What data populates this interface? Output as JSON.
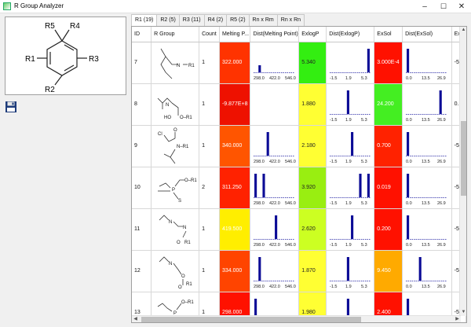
{
  "window": {
    "title": "R Group Analyzer",
    "minimize": "–",
    "maximize": "☐",
    "close": "✕"
  },
  "scaffold": {
    "labels": [
      "R5",
      "R4",
      "R1",
      "R3",
      "R2"
    ]
  },
  "tabs": [
    {
      "label": "R1 (19)",
      "active": true
    },
    {
      "label": "R2 (5)",
      "active": false
    },
    {
      "label": "R3 (11)",
      "active": false
    },
    {
      "label": "R4 (2)",
      "active": false
    },
    {
      "label": "R5 (2)",
      "active": false
    },
    {
      "label": "Rn x Rm",
      "active": false
    },
    {
      "label": "Rn x Rn",
      "active": false
    }
  ],
  "columns": [
    "ID",
    "R Group",
    "Count",
    "Melting P...",
    "Dist(Melting Point)",
    "ExlogP",
    "Dist(ExlogP)",
    "ExSol",
    "Dist(ExSol)",
    "Ex"
  ],
  "axes": {
    "mp": [
      "298.0",
      "422.0",
      "546.0"
    ],
    "logp": [
      "-1.5",
      "1.9",
      "5.3"
    ],
    "sol": [
      "0.0",
      "13.5",
      "26.9"
    ]
  },
  "rows": [
    {
      "id": "7",
      "count": "1",
      "mp": "322.000",
      "mp_color": "#ff3300",
      "logp": "5.340",
      "logp_color": "#33ee11",
      "sol": "3.000E-4",
      "sol_color": "#ff1100",
      "mp_hist": [
        0,
        0.3,
        0,
        0,
        0,
        0,
        0,
        0,
        0,
        0
      ],
      "logp_hist": [
        0,
        0,
        0,
        0,
        0,
        0,
        0,
        0,
        0,
        1
      ],
      "sol_hist": [
        1,
        0,
        0,
        0,
        0,
        0,
        0,
        0,
        0,
        0
      ],
      "ex": "-5"
    },
    {
      "id": "8",
      "count": "1",
      "mp": "-9.877E+8",
      "mp_color": "#ee1100",
      "logp": "1.880",
      "logp_color": "#ffff33",
      "sol": "24.200",
      "sol_color": "#44ee22",
      "mp_hist": null,
      "logp_hist": [
        0,
        0,
        0,
        0,
        1,
        0,
        0,
        0,
        0,
        0
      ],
      "sol_hist": [
        0,
        0,
        0,
        0,
        0,
        0,
        0,
        0,
        1,
        0
      ],
      "ex": "0."
    },
    {
      "id": "9",
      "count": "1",
      "mp": "340.000",
      "mp_color": "#ff5500",
      "logp": "2.180",
      "logp_color": "#ffff33",
      "sol": "0.700",
      "sol_color": "#ff2200",
      "mp_hist": [
        0,
        0,
        0,
        1,
        0,
        0,
        0,
        0,
        0,
        0
      ],
      "logp_hist": [
        0,
        0,
        0,
        0,
        0,
        1,
        0,
        0,
        0,
        0
      ],
      "sol_hist": [
        1,
        0,
        0,
        0,
        0,
        0,
        0,
        0,
        0,
        0
      ],
      "ex": "-5"
    },
    {
      "id": "10",
      "count": "2",
      "mp": "311.250",
      "mp_color": "#ff2200",
      "logp": "3.920",
      "logp_color": "#99ee11",
      "sol": "0.019",
      "sol_color": "#ff1100",
      "mp_hist": [
        1,
        0,
        1,
        0,
        0,
        0,
        0,
        0,
        0,
        0
      ],
      "logp_hist": [
        0,
        0,
        0,
        0,
        0,
        0,
        0,
        1,
        0,
        1
      ],
      "sol_hist": [
        1,
        0,
        0,
        0,
        0,
        0,
        0,
        0,
        0,
        0
      ],
      "ex": "-5"
    },
    {
      "id": "11",
      "count": "1",
      "mp": "419.500",
      "mp_color": "#ffee00",
      "logp": "2.620",
      "logp_color": "#ccff22",
      "sol": "0.200",
      "sol_color": "#ff1100",
      "mp_hist": [
        0,
        0,
        0,
        0,
        0,
        1,
        0,
        0,
        0,
        0
      ],
      "logp_hist": [
        0,
        0,
        0,
        0,
        0,
        1,
        0,
        0,
        0,
        0
      ],
      "sol_hist": [
        1,
        0,
        0,
        0,
        0,
        0,
        0,
        0,
        0,
        0
      ],
      "ex": "-5"
    },
    {
      "id": "12",
      "count": "1",
      "mp": "334.000",
      "mp_color": "#ff4400",
      "logp": "1.870",
      "logp_color": "#ffff33",
      "sol": "9.450",
      "sol_color": "#ffaa00",
      "mp_hist": [
        0,
        1,
        0,
        0,
        0,
        0,
        0,
        0,
        0,
        0
      ],
      "logp_hist": [
        0,
        0,
        0,
        0,
        1,
        0,
        0,
        0,
        0,
        0
      ],
      "sol_hist": [
        0,
        0,
        0,
        1,
        0,
        0,
        0,
        0,
        0,
        0
      ],
      "ex": "-5"
    },
    {
      "id": "13",
      "count": "1",
      "mp": "298.000",
      "mp_color": "#ff1100",
      "logp": "1.980",
      "logp_color": "#ffff33",
      "sol": "2.400",
      "sol_color": "#ff1100",
      "mp_hist": [
        1,
        0,
        0,
        0,
        0,
        0,
        0,
        0,
        0,
        0
      ],
      "logp_hist": [
        0,
        0,
        0,
        0,
        1,
        0,
        0,
        0,
        0,
        0
      ],
      "sol_hist": [
        1,
        0,
        0,
        0,
        0,
        0,
        0,
        0,
        0,
        0
      ],
      "ex": "-5"
    }
  ]
}
